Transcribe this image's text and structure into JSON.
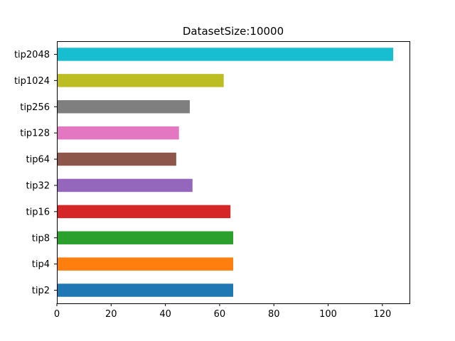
{
  "chart_data": {
    "type": "bar",
    "orientation": "horizontal",
    "title": "DatasetSize:10000",
    "xlabel": "",
    "ylabel": "",
    "xlim": [
      0,
      130
    ],
    "xticks": [
      0,
      20,
      40,
      60,
      80,
      100,
      120
    ],
    "grid": false,
    "legend": "none",
    "categories": [
      "tip2",
      "tip4",
      "tip8",
      "tip16",
      "tip32",
      "tip64",
      "tip128",
      "tip256",
      "tip1024",
      "tip2048"
    ],
    "values": [
      65,
      65,
      65,
      64,
      50,
      44,
      45,
      49,
      61.5,
      124
    ],
    "colors": [
      "#1f77b4",
      "#ff7f0e",
      "#2ca02c",
      "#d62728",
      "#9467bd",
      "#8c564b",
      "#e377c2",
      "#7f7f7f",
      "#bcbd22",
      "#17becf"
    ]
  }
}
